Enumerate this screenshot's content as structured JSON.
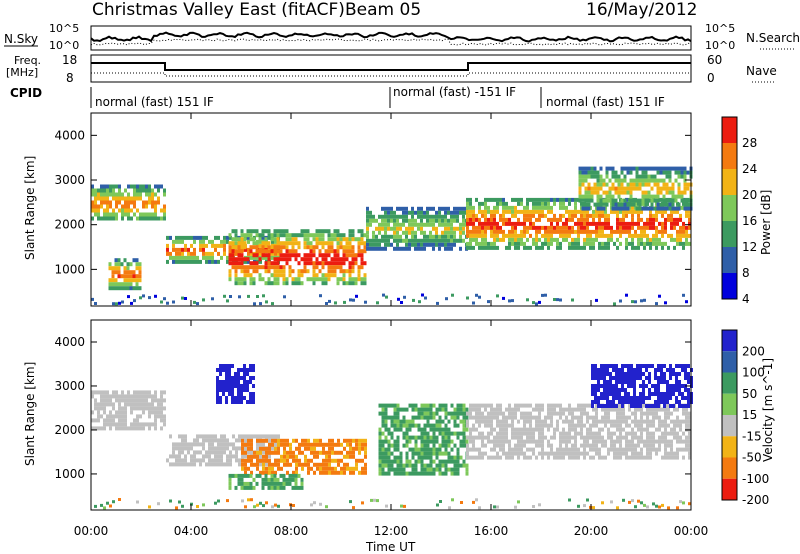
{
  "title": {
    "left": "Christmas Valley East (fitACF)",
    "center": "Beam 05",
    "right": "16/May/2012"
  },
  "header_panels": {
    "nsky_label": "N.Sky",
    "nsearch_label": "N.Search",
    "noise_left_ticks": [
      "10^5",
      "10^0"
    ],
    "noise_right_ticks": [
      "10^5",
      "10^0"
    ],
    "freq_label_line1": "Freq.",
    "freq_label_line2": "[MHz]",
    "freq_ticks": [
      "18",
      "8"
    ],
    "nave_label": "Nave",
    "nave_ticks": [
      "60",
      "0"
    ],
    "cpid_label": "CPID",
    "cpid_segments": [
      {
        "label": "normal (fast) 151 IF",
        "start_h": 0,
        "end_h": 12
      },
      {
        "label": "normal (fast) -151 IF",
        "start_h": 12,
        "end_h": 18
      },
      {
        "label": "normal (fast) 151 IF",
        "start_h": 18,
        "end_h": 24
      }
    ]
  },
  "colors": {
    "power_scale": [
      "#0000dd",
      "#2f5fa8",
      "#3c9a60",
      "#7ec85a",
      "#f2b316",
      "#f47a10",
      "#ec1c10"
    ],
    "velocity_scale": [
      "#2222cc",
      "#2f5fa8",
      "#3c9a60",
      "#7ec85a",
      "#c0c0c0",
      "#f2b316",
      "#f47a10",
      "#ec1c10"
    ]
  },
  "chart_data": [
    {
      "type": "heatmap",
      "name": "power",
      "ylabel": "Slant Range [km]",
      "yticks": [
        1000,
        2000,
        3000,
        4000
      ],
      "ylim": [
        180,
        4500
      ],
      "xlim": [
        0,
        24
      ],
      "xticks": [
        "00:00",
        "04:00",
        "08:00",
        "12:00",
        "16:00",
        "20:00",
        "00:00"
      ],
      "colorbar": {
        "label": "Power [dB]",
        "ticks": [
          "4",
          "8",
          "12",
          "16",
          "20",
          "24",
          "28"
        ],
        "range": [
          0,
          30
        ]
      },
      "echo_bands": [
        {
          "t0": 0.0,
          "t1": 3.0,
          "r_top": 2900,
          "r_bottom": 2100,
          "peak_db": 24
        },
        {
          "t0": 0.7,
          "t1": 2.0,
          "r_top": 1250,
          "r_bottom": 600,
          "peak_db": 26
        },
        {
          "t0": 3.0,
          "t1": 7.5,
          "r_top": 1750,
          "r_bottom": 1200,
          "peak_db": 26
        },
        {
          "t0": 5.5,
          "t1": 11.0,
          "r_top": 1900,
          "r_bottom": 650,
          "peak_db": 30
        },
        {
          "t0": 11.0,
          "t1": 15.0,
          "r_top": 2400,
          "r_bottom": 1500,
          "peak_db": 18
        },
        {
          "t0": 15.0,
          "t1": 24.0,
          "r_top": 2600,
          "r_bottom": 1500,
          "peak_db": 28
        },
        {
          "t0": 19.5,
          "t1": 24.0,
          "r_top": 3300,
          "r_bottom": 2400,
          "peak_db": 20
        }
      ]
    },
    {
      "type": "heatmap",
      "name": "velocity",
      "ylabel": "Slant Range [km]",
      "xlabel": "Time UT",
      "yticks": [
        1000,
        2000,
        3000,
        4000
      ],
      "ylim": [
        180,
        4500
      ],
      "xlim": [
        0,
        24
      ],
      "xticks": [
        "00:00",
        "04:00",
        "08:00",
        "12:00",
        "16:00",
        "20:00",
        "00:00"
      ],
      "colorbar": {
        "label": "Velocity [m s^-1]",
        "ticks": [
          "200",
          "100",
          "50",
          "15",
          "-15",
          "-50",
          "-100",
          "-200"
        ],
        "range": [
          -250,
          250
        ]
      },
      "echo_bands": [
        {
          "t0": 0.0,
          "t1": 3.0,
          "r_top": 2900,
          "r_bottom": 2000,
          "velocity": 0
        },
        {
          "t0": 3.0,
          "t1": 7.5,
          "r_top": 1900,
          "r_bottom": 1250,
          "velocity": 0
        },
        {
          "t0": 6.0,
          "t1": 11.0,
          "r_top": 1800,
          "r_bottom": 1000,
          "velocity": -40
        },
        {
          "t0": 5.5,
          "t1": 8.5,
          "r_top": 1000,
          "r_bottom": 700,
          "velocity": 40
        },
        {
          "t0": 5.0,
          "t1": 6.5,
          "r_top": 3500,
          "r_bottom": 2600,
          "velocity": 200
        },
        {
          "t0": 11.5,
          "t1": 15.0,
          "r_top": 2600,
          "r_bottom": 1000,
          "velocity": 40
        },
        {
          "t0": 15.0,
          "t1": 24.0,
          "r_top": 2600,
          "r_bottom": 1400,
          "velocity": 0
        },
        {
          "t0": 20.0,
          "t1": 24.0,
          "r_top": 3500,
          "r_bottom": 2500,
          "velocity": 200
        }
      ]
    }
  ]
}
